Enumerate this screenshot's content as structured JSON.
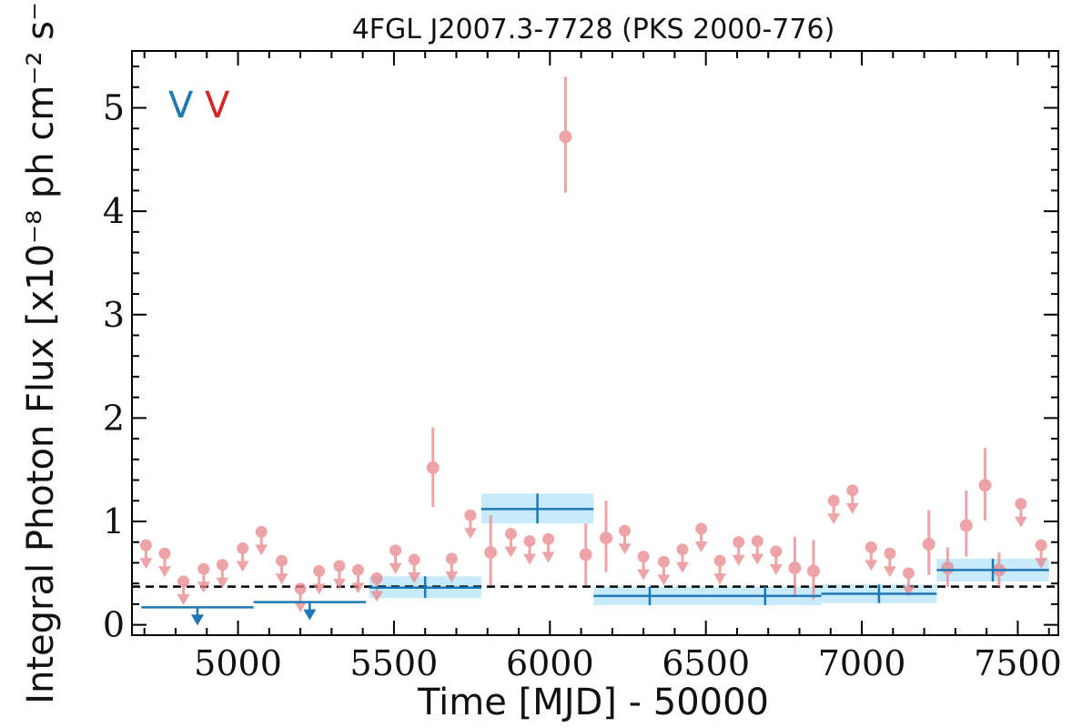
{
  "chart_data": {
    "type": "scatter",
    "title": "4FGL J2007.3-7728 (PKS 2000-776)",
    "xlabel": "Time [MJD] - 50000",
    "ylabel": "Integral Photon Flux [x10⁻⁸ ph cm⁻² s⁻¹]",
    "xlim": [
      4660,
      7630
    ],
    "ylim": [
      -0.1,
      5.55
    ],
    "xticks": [
      5000,
      5500,
      6000,
      6500,
      7000,
      7500
    ],
    "xtick_labels": [
      "5000",
      "5500",
      "6000",
      "6500",
      "7000",
      "7500"
    ],
    "yticks": [
      0,
      1,
      2,
      3,
      4,
      5
    ],
    "ytick_labels": [
      "0",
      "1",
      "2",
      "3",
      "4",
      "5"
    ],
    "grid": false,
    "legend": {
      "position": "top-left",
      "entries": [
        {
          "label": "V",
          "color": "#1f77b4"
        },
        {
          "label": "V",
          "color": "#d62728"
        }
      ]
    },
    "reference_line": {
      "y": 0.37,
      "style": "dashed",
      "color": "#000000"
    },
    "series": [
      {
        "color": "#e8868a",
        "detections": [
          {
            "x": 5625,
            "y": 1.52,
            "ylo": 1.14,
            "yhi": 1.91
          },
          {
            "x": 5810,
            "y": 0.7,
            "ylo": 0.38,
            "yhi": 1.06
          },
          {
            "x": 6050,
            "y": 4.72,
            "ylo": 4.18,
            "yhi": 5.3
          },
          {
            "x": 6115,
            "y": 0.68,
            "ylo": 0.38,
            "yhi": 0.98
          },
          {
            "x": 6180,
            "y": 0.84,
            "ylo": 0.51,
            "yhi": 1.2
          },
          {
            "x": 6785,
            "y": 0.55,
            "ylo": 0.27,
            "yhi": 0.85
          },
          {
            "x": 6845,
            "y": 0.52,
            "ylo": 0.25,
            "yhi": 0.82
          },
          {
            "x": 7215,
            "y": 0.78,
            "ylo": 0.48,
            "yhi": 1.11
          },
          {
            "x": 7275,
            "y": 0.55,
            "ylo": 0.37,
            "yhi": 0.75
          },
          {
            "x": 7335,
            "y": 0.96,
            "ylo": 0.66,
            "yhi": 1.3
          },
          {
            "x": 7395,
            "y": 1.35,
            "ylo": 1.01,
            "yhi": 1.71
          },
          {
            "x": 7440,
            "y": 0.53,
            "ylo": 0.37,
            "yhi": 0.7
          }
        ],
        "upper_limits": [
          {
            "x": 4705,
            "y": 0.77
          },
          {
            "x": 4765,
            "y": 0.69
          },
          {
            "x": 4825,
            "y": 0.42
          },
          {
            "x": 4890,
            "y": 0.54
          },
          {
            "x": 4950,
            "y": 0.58
          },
          {
            "x": 5015,
            "y": 0.74
          },
          {
            "x": 5075,
            "y": 0.9
          },
          {
            "x": 5140,
            "y": 0.62
          },
          {
            "x": 5200,
            "y": 0.35
          },
          {
            "x": 5260,
            "y": 0.52
          },
          {
            "x": 5325,
            "y": 0.57
          },
          {
            "x": 5385,
            "y": 0.53
          },
          {
            "x": 5445,
            "y": 0.45
          },
          {
            "x": 5505,
            "y": 0.72
          },
          {
            "x": 5565,
            "y": 0.63
          },
          {
            "x": 5685,
            "y": 0.64
          },
          {
            "x": 5745,
            "y": 1.06
          },
          {
            "x": 5875,
            "y": 0.88
          },
          {
            "x": 5935,
            "y": 0.81
          },
          {
            "x": 5995,
            "y": 0.83
          },
          {
            "x": 6240,
            "y": 0.91
          },
          {
            "x": 6300,
            "y": 0.66
          },
          {
            "x": 6365,
            "y": 0.61
          },
          {
            "x": 6425,
            "y": 0.73
          },
          {
            "x": 6485,
            "y": 0.93
          },
          {
            "x": 6545,
            "y": 0.62
          },
          {
            "x": 6605,
            "y": 0.8
          },
          {
            "x": 6665,
            "y": 0.81
          },
          {
            "x": 6725,
            "y": 0.71
          },
          {
            "x": 6910,
            "y": 1.2
          },
          {
            "x": 6970,
            "y": 1.3
          },
          {
            "x": 7030,
            "y": 0.75
          },
          {
            "x": 7090,
            "y": 0.69
          },
          {
            "x": 7150,
            "y": 0.5
          },
          {
            "x": 7510,
            "y": 1.17
          },
          {
            "x": 7575,
            "y": 0.77
          }
        ]
      },
      {
        "color": "#1f77b4",
        "band_color": "#c7ebfb",
        "detections": [
          {
            "x": 5600,
            "xlo": 5420,
            "xhi": 5780,
            "y": 0.36,
            "ylo": 0.26,
            "yhi": 0.47
          },
          {
            "x": 5960,
            "xlo": 5780,
            "xhi": 6140,
            "y": 1.12,
            "ylo": 0.98,
            "yhi": 1.27
          },
          {
            "x": 6320,
            "xlo": 6140,
            "xhi": 6510,
            "y": 0.28,
            "ylo": 0.19,
            "yhi": 0.37
          },
          {
            "x": 6690,
            "xlo": 6510,
            "xhi": 6870,
            "y": 0.28,
            "ylo": 0.19,
            "yhi": 0.37
          },
          {
            "x": 7055,
            "xlo": 6870,
            "xhi": 7240,
            "y": 0.3,
            "ylo": 0.21,
            "yhi": 0.39
          },
          {
            "x": 7420,
            "xlo": 7240,
            "xhi": 7600,
            "y": 0.53,
            "ylo": 0.42,
            "yhi": 0.64
          }
        ],
        "upper_limits": [
          {
            "x": 4870,
            "xlo": 4690,
            "xhi": 5050,
            "y": 0.17
          },
          {
            "x": 5230,
            "xlo": 5050,
            "xhi": 5410,
            "y": 0.22
          }
        ]
      }
    ]
  }
}
